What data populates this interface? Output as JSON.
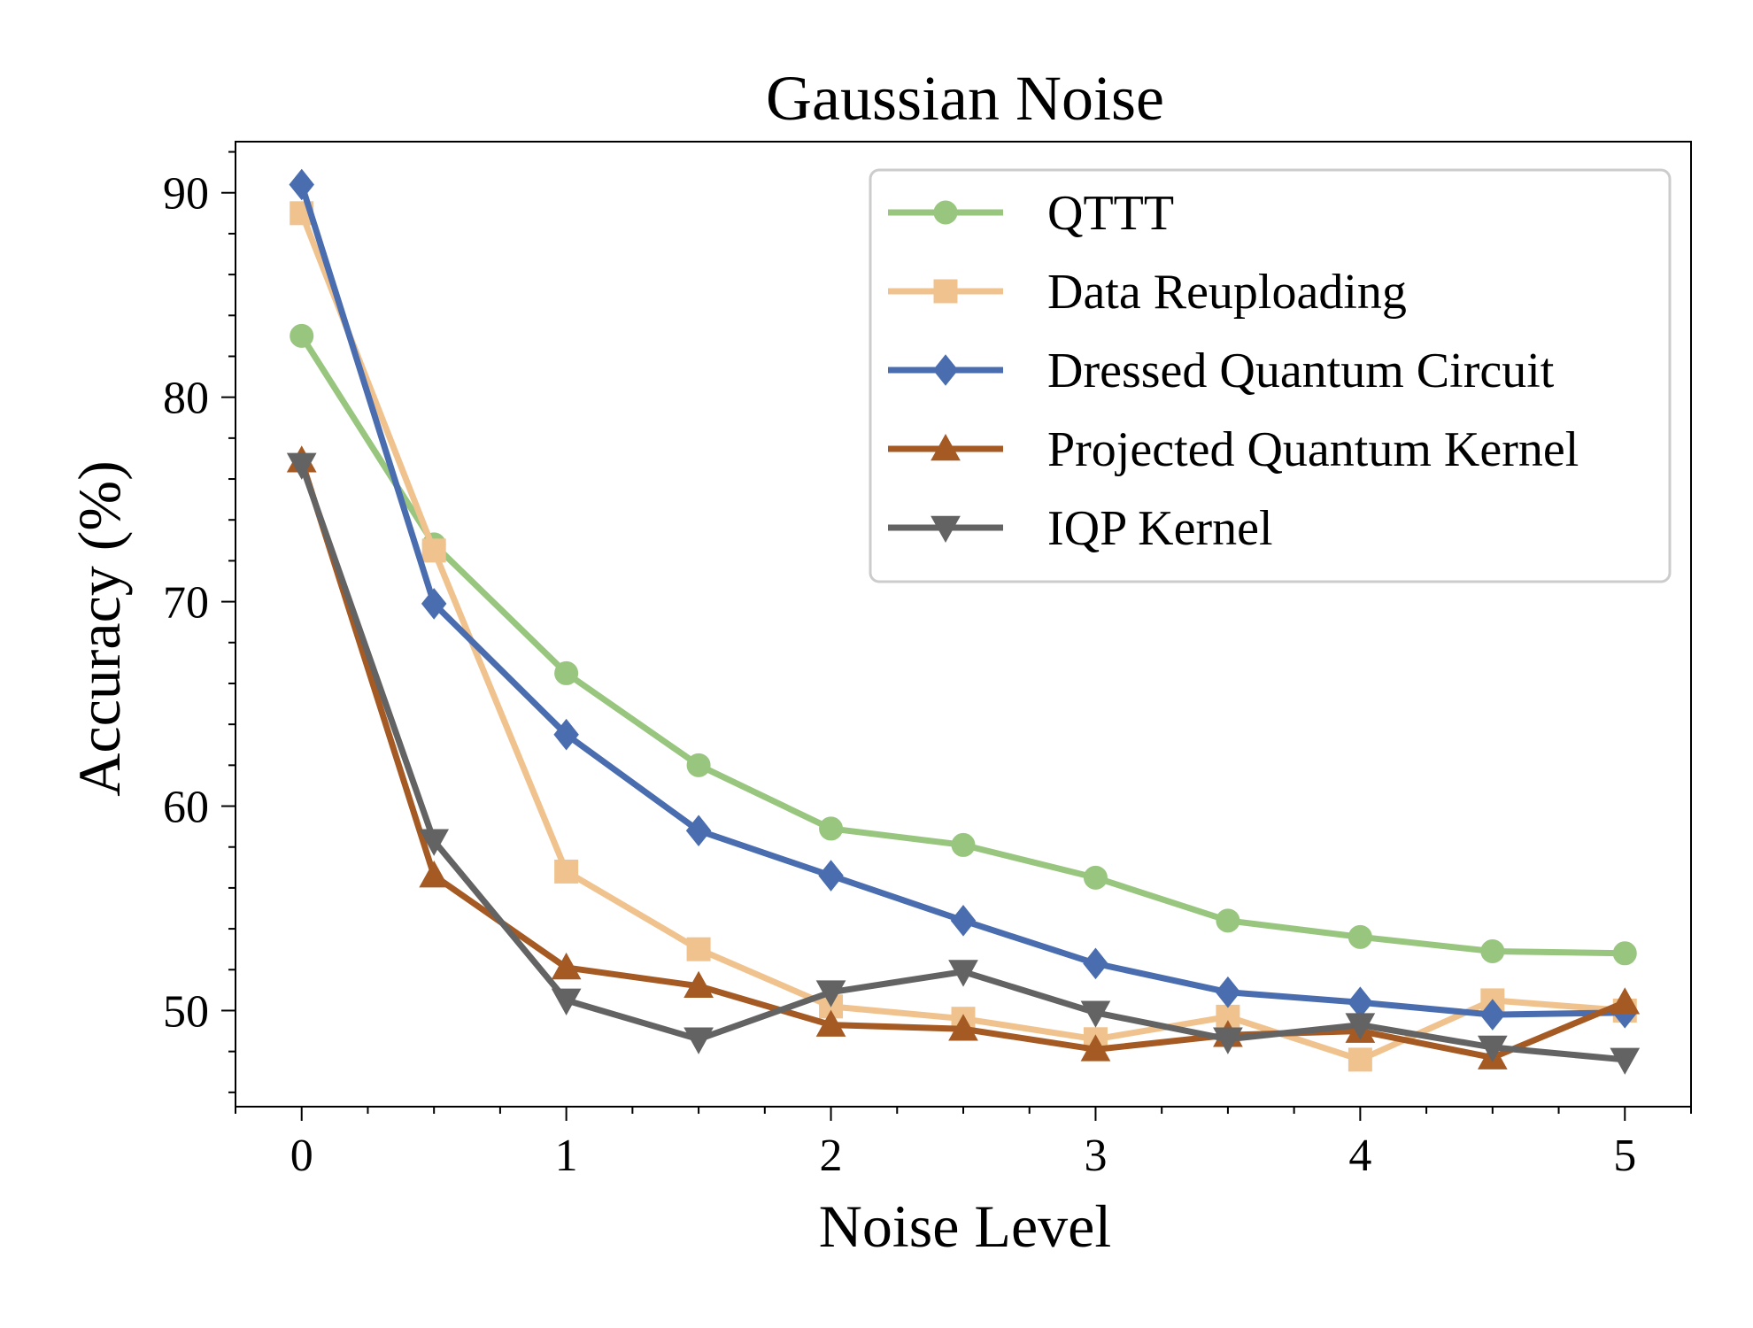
{
  "chart_data": {
    "type": "line",
    "title": "Gaussian Noise",
    "xlabel": "Noise Level",
    "ylabel": "Accuracy (%)",
    "xlim": [
      -0.25,
      5.25
    ],
    "ylim": [
      45.3,
      92.5
    ],
    "xticks": [
      0,
      1,
      2,
      3,
      4,
      5
    ],
    "xtick_labels": [
      "0",
      "1",
      "2",
      "3",
      "4",
      "5"
    ],
    "yticks": [
      50,
      60,
      70,
      80,
      90
    ],
    "ytick_labels": [
      "50",
      "60",
      "70",
      "80",
      "90"
    ],
    "grid": false,
    "legend_position": "top-right",
    "x": [
      0,
      0.5,
      1,
      1.5,
      2,
      2.5,
      3,
      3.5,
      4,
      4.5,
      5
    ],
    "series": [
      {
        "name": "QTTT",
        "color": "#98c67f",
        "marker": "circle",
        "values": [
          83.0,
          72.8,
          66.5,
          62.0,
          58.9,
          58.1,
          56.5,
          54.4,
          53.6,
          52.9,
          52.8
        ]
      },
      {
        "name": "Data Reuploading",
        "color": "#f0c38e",
        "marker": "square",
        "values": [
          89.0,
          72.5,
          56.8,
          53.0,
          50.2,
          49.6,
          48.6,
          49.7,
          47.6,
          50.5,
          50.0
        ]
      },
      {
        "name": "Dressed Quantum Circuit",
        "color": "#4a6db0",
        "marker": "diamond",
        "values": [
          90.4,
          69.9,
          63.5,
          58.8,
          56.6,
          54.4,
          52.3,
          50.9,
          50.4,
          49.8,
          49.9
        ]
      },
      {
        "name": "Projected Quantum Kernel",
        "color": "#a55a24",
        "marker": "triangle-up",
        "values": [
          76.9,
          56.6,
          52.1,
          51.2,
          49.3,
          49.1,
          48.1,
          48.8,
          49.0,
          47.7,
          50.4
        ]
      },
      {
        "name": "IQP Kernel",
        "color": "#636363",
        "marker": "triangle-down",
        "values": [
          76.7,
          58.3,
          50.5,
          48.6,
          50.9,
          51.9,
          49.9,
          48.6,
          49.3,
          48.2,
          47.6
        ]
      }
    ]
  }
}
